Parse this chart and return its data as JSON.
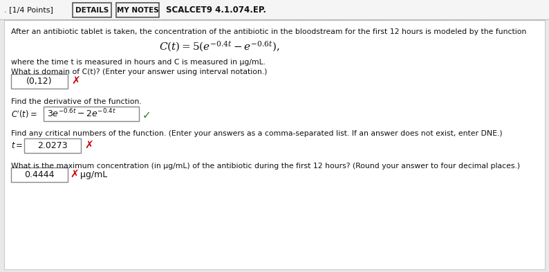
{
  "bg_color": "#e8e8e8",
  "panel_bg": "#ffffff",
  "text_color": "#111111",
  "red_color": "#cc0000",
  "green_color": "#2a7a2a",
  "box_border": "#888888",
  "header_border": "#aaaaaa",
  "dotted_border": "#aaaaaa",
  "title_text": ". [1/4 Points]",
  "details_btn": "DETAILS",
  "mynotes_btn": "MY NOTES",
  "scalcet_text": "SCALCET9 4.1.074.EP.",
  "main_text": "After an antibiotic tablet is taken, the concentration of the antibiotic in the bloodstream for the first 12 hours is modeled by the function",
  "line_units": "where the time t is measured in hours and C is measured in μg/mL.",
  "q1_text": "What is domain of C(t)? (Enter your answer using interval notation.)",
  "q1_answer": "(0,12)",
  "q2_text": "Find the derivative of the function.",
  "q3_text": "Find any critical numbers of the function. (Enter your answers as a comma-separated list. If an answer does not exist, enter DNE.)",
  "q3_answer": "2.0273",
  "q4_text": "What is the maximum concentration (in μg/mL) of the antibiotic during the first 12 hours? (Round your answer to four decimal places.)",
  "q4_answer": "0.4444",
  "q4_unit": "× μg/mL",
  "wrong": "✗",
  "check": "✓"
}
